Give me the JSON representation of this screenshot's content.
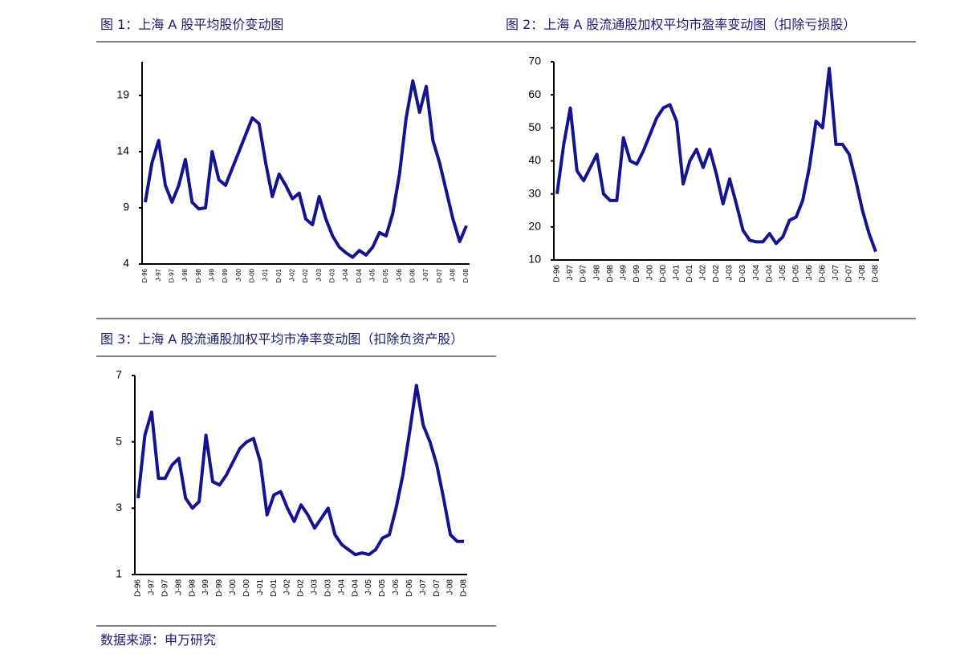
{
  "chart_data": [
    {
      "type": "line",
      "title": "图 1：上海 A 股平均股价变动图",
      "categories": [
        "D-96",
        null,
        "J-97",
        null,
        "D-97",
        null,
        "J-98",
        null,
        "D-98",
        null,
        "J-99",
        null,
        "D-99",
        null,
        "J-00",
        null,
        "D-00",
        null,
        "J-01",
        null,
        "D-01",
        null,
        "J-02",
        null,
        "D-02",
        null,
        "J-03",
        null,
        "D-03",
        null,
        "J-04",
        null,
        "D-04",
        null,
        "J-05",
        null,
        "D-05",
        null,
        "J-06",
        null,
        "D-06",
        null,
        "J-07",
        null,
        "D-07",
        null,
        "J-08",
        null,
        "D-08"
      ],
      "values": [
        9.5,
        13,
        15,
        11,
        9.5,
        11,
        13.3,
        9.5,
        8.9,
        9,
        14,
        11.5,
        11,
        12.5,
        14,
        15.5,
        17,
        16.5,
        13,
        10,
        12,
        11,
        9.8,
        10.3,
        8,
        7.5,
        10,
        8,
        6.5,
        5.5,
        5,
        4.6,
        5.2,
        4.8,
        5.5,
        6.8,
        6.5,
        8.5,
        12,
        17,
        20.3,
        17.5,
        19.8,
        15,
        13,
        10.5,
        8,
        6,
        7.4
      ],
      "color": "#141490",
      "ylim": [
        4,
        22
      ],
      "yticks": [
        4,
        9,
        14,
        19
      ]
    },
    {
      "type": "line",
      "title": "图 2：上海 A 股流通股加权平均市盈率变动图（扣除亏损股）",
      "categories": [
        "D-96",
        null,
        "J-97",
        null,
        "D-97",
        null,
        "J-98",
        null,
        "D-98",
        null,
        "J-99",
        null,
        "D-99",
        null,
        "J-00",
        null,
        "D-00",
        null,
        "J-01",
        null,
        "D-01",
        null,
        "J-02",
        null,
        "D-02",
        null,
        "J-03",
        null,
        "D-03",
        null,
        "J-04",
        null,
        "D-04",
        null,
        "J-05",
        null,
        "D-05",
        null,
        "J-06",
        null,
        "D-06",
        null,
        "J-07",
        null,
        "D-07",
        null,
        "J-08",
        null,
        "D-08"
      ],
      "values": [
        30,
        45,
        56,
        37,
        34,
        38,
        42,
        30,
        28,
        28,
        47,
        40,
        39,
        43,
        48,
        53,
        56,
        57,
        52,
        33,
        40,
        43.5,
        38,
        43.5,
        36,
        27,
        34.5,
        27,
        19,
        16,
        15.5,
        15.5,
        18,
        15,
        17,
        22,
        23,
        28,
        38,
        52,
        50,
        68,
        45,
        45,
        42,
        34,
        25,
        18,
        12.5
      ],
      "color": "#141490",
      "ylim": [
        10,
        70
      ],
      "yticks": [
        10,
        20,
        30,
        40,
        50,
        60,
        70
      ]
    },
    {
      "type": "line",
      "title": "图 3：上海 A 股流通股加权平均市净率变动图（扣除负资产股）",
      "categories": [
        "D-96",
        null,
        "J-97",
        null,
        "D-97",
        null,
        "J-98",
        null,
        "D-98",
        null,
        "J-99",
        null,
        "D-99",
        null,
        "J-00",
        null,
        "D-00",
        null,
        "J-01",
        null,
        "D-01",
        null,
        "J-02",
        null,
        "D-02",
        null,
        "J-03",
        null,
        "D-03",
        null,
        "J-04",
        null,
        "D-04",
        null,
        "J-05",
        null,
        "D-05",
        null,
        "J-06",
        null,
        "D-06",
        null,
        "J-07",
        null,
        "D-07",
        null,
        "J-08",
        null,
        "D-08"
      ],
      "values": [
        3.3,
        5.2,
        5.9,
        3.9,
        3.9,
        4.3,
        4.5,
        3.3,
        3.0,
        3.2,
        5.2,
        3.8,
        3.7,
        4.0,
        4.4,
        4.8,
        5.0,
        5.1,
        4.4,
        2.8,
        3.4,
        3.5,
        3.0,
        2.6,
        3.1,
        2.8,
        2.4,
        2.7,
        3.0,
        2.2,
        1.9,
        1.75,
        1.6,
        1.65,
        1.6,
        1.75,
        2.1,
        2.2,
        3.0,
        4.0,
        5.3,
        6.7,
        5.5,
        5.0,
        4.3,
        3.3,
        2.2,
        2.0,
        2.0
      ],
      "color": "#141490",
      "ylim": [
        1,
        7
      ],
      "yticks": [
        1,
        3,
        5,
        7
      ]
    }
  ],
  "source": "数据来源：申万研究"
}
